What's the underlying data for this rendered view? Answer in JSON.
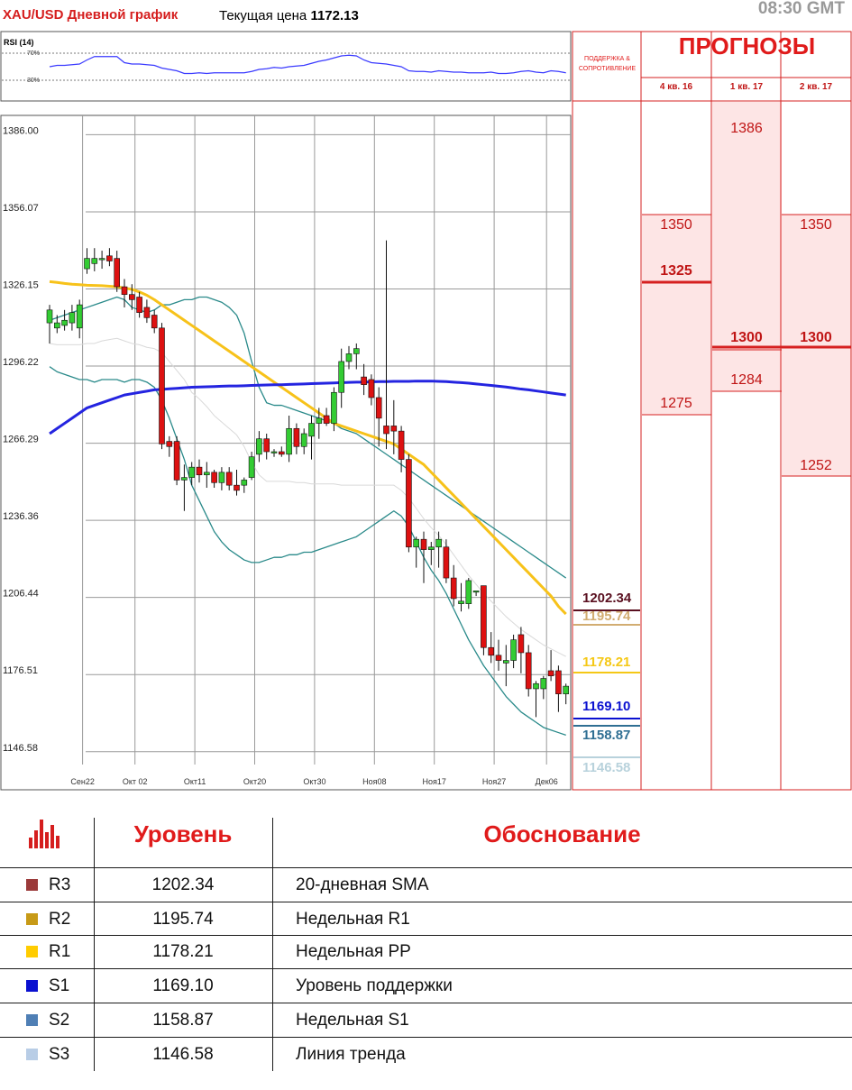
{
  "header": {
    "title": "XAU/USD Дневной график",
    "price_label": "Текущая цена",
    "price_value": "1172.13",
    "time": "08:30 GMT"
  },
  "chart_data": {
    "type": "candlestick",
    "indicator_label": "RSI (14)",
    "rsi_levels": [
      "70%",
      "30%"
    ],
    "y_ticks": [
      "1386.00",
      "1356.07",
      "1326.15",
      "1296.22",
      "1266.29",
      "1236.36",
      "1206.44",
      "1176.51",
      "1146.58"
    ],
    "ylim": [
      1141.6,
      1393.5
    ],
    "x_ticks": [
      "Сен22",
      "Окт 02",
      "Окт11",
      "Окт20",
      "Окт30",
      "Ноя08",
      "Ноя17",
      "Ноя27",
      "Дек06"
    ],
    "x_tick_index": [
      2,
      9,
      17,
      25,
      33,
      41,
      49,
      57,
      64
    ],
    "candles": [
      {
        "o": 1313,
        "h": 1320,
        "l": 1305,
        "c": 1318
      },
      {
        "o": 1311,
        "h": 1316,
        "l": 1309,
        "c": 1313
      },
      {
        "o": 1312,
        "h": 1318,
        "l": 1310,
        "c": 1314
      },
      {
        "o": 1313,
        "h": 1320,
        "l": 1310,
        "c": 1317
      },
      {
        "o": 1311,
        "h": 1322,
        "l": 1307,
        "c": 1320
      },
      {
        "o": 1334,
        "h": 1342,
        "l": 1332,
        "c": 1338
      },
      {
        "o": 1336,
        "h": 1342,
        "l": 1333,
        "c": 1338
      },
      {
        "o": 1338,
        "h": 1341,
        "l": 1334,
        "c": 1338
      },
      {
        "o": 1339,
        "h": 1342,
        "l": 1335,
        "c": 1337
      },
      {
        "o": 1338,
        "h": 1341,
        "l": 1325,
        "c": 1327
      },
      {
        "o": 1327,
        "h": 1330,
        "l": 1319,
        "c": 1324
      },
      {
        "o": 1324,
        "h": 1328,
        "l": 1318,
        "c": 1322
      },
      {
        "o": 1323,
        "h": 1325,
        "l": 1315,
        "c": 1317
      },
      {
        "o": 1319,
        "h": 1322,
        "l": 1313,
        "c": 1315
      },
      {
        "o": 1316,
        "h": 1318,
        "l": 1309,
        "c": 1311
      },
      {
        "o": 1311,
        "h": 1313,
        "l": 1264,
        "c": 1266
      },
      {
        "o": 1267,
        "h": 1269,
        "l": 1261,
        "c": 1265
      },
      {
        "o": 1267,
        "h": 1269,
        "l": 1250,
        "c": 1252
      },
      {
        "o": 1252,
        "h": 1258,
        "l": 1240,
        "c": 1253
      },
      {
        "o": 1253,
        "h": 1259,
        "l": 1250,
        "c": 1257
      },
      {
        "o": 1257,
        "h": 1260,
        "l": 1251,
        "c": 1254
      },
      {
        "o": 1254,
        "h": 1259,
        "l": 1249,
        "c": 1255
      },
      {
        "o": 1255,
        "h": 1256,
        "l": 1249,
        "c": 1251
      },
      {
        "o": 1251,
        "h": 1257,
        "l": 1248,
        "c": 1255
      },
      {
        "o": 1255,
        "h": 1257,
        "l": 1248,
        "c": 1250
      },
      {
        "o": 1250,
        "h": 1256,
        "l": 1246,
        "c": 1248
      },
      {
        "o": 1250,
        "h": 1253,
        "l": 1247,
        "c": 1252
      },
      {
        "o": 1253,
        "h": 1263,
        "l": 1252,
        "c": 1261
      },
      {
        "o": 1262,
        "h": 1271,
        "l": 1259,
        "c": 1268
      },
      {
        "o": 1268,
        "h": 1270,
        "l": 1260,
        "c": 1263
      },
      {
        "o": 1263,
        "h": 1264,
        "l": 1261,
        "c": 1263
      },
      {
        "o": 1263,
        "h": 1265,
        "l": 1261,
        "c": 1262
      },
      {
        "o": 1262,
        "h": 1277,
        "l": 1259,
        "c": 1272
      },
      {
        "o": 1272,
        "h": 1274,
        "l": 1262,
        "c": 1265
      },
      {
        "o": 1265,
        "h": 1272,
        "l": 1262,
        "c": 1270
      },
      {
        "o": 1269,
        "h": 1277,
        "l": 1260,
        "c": 1274
      },
      {
        "o": 1274,
        "h": 1280,
        "l": 1268,
        "c": 1276
      },
      {
        "o": 1277,
        "h": 1280,
        "l": 1273,
        "c": 1274
      },
      {
        "o": 1274,
        "h": 1288,
        "l": 1271,
        "c": 1286
      },
      {
        "o": 1286,
        "h": 1303,
        "l": 1280,
        "c": 1298
      },
      {
        "o": 1298,
        "h": 1304,
        "l": 1295,
        "c": 1301
      },
      {
        "o": 1301,
        "h": 1305,
        "l": 1295,
        "c": 1303
      },
      {
        "o": 1292,
        "h": 1297,
        "l": 1285,
        "c": 1289
      },
      {
        "o": 1291,
        "h": 1293,
        "l": 1281,
        "c": 1284
      },
      {
        "o": 1284,
        "h": 1288,
        "l": 1265,
        "c": 1276
      },
      {
        "o": 1273,
        "h": 1345,
        "l": 1264,
        "c": 1270
      },
      {
        "o": 1273,
        "h": 1283,
        "l": 1262,
        "c": 1271
      },
      {
        "o": 1271,
        "h": 1273,
        "l": 1255,
        "c": 1260
      },
      {
        "o": 1260,
        "h": 1262,
        "l": 1224,
        "c": 1226
      },
      {
        "o": 1226,
        "h": 1230,
        "l": 1218,
        "c": 1229
      },
      {
        "o": 1229,
        "h": 1232,
        "l": 1212,
        "c": 1225
      },
      {
        "o": 1225,
        "h": 1228,
        "l": 1219,
        "c": 1226
      },
      {
        "o": 1226,
        "h": 1232,
        "l": 1218,
        "c": 1229
      },
      {
        "o": 1226,
        "h": 1229,
        "l": 1212,
        "c": 1214
      },
      {
        "o": 1214,
        "h": 1219,
        "l": 1203,
        "c": 1206
      },
      {
        "o": 1204,
        "h": 1212,
        "l": 1201,
        "c": 1205
      },
      {
        "o": 1204,
        "h": 1214,
        "l": 1202,
        "c": 1213
      },
      {
        "o": 1209,
        "h": 1209,
        "l": 1207,
        "c": 1209
      },
      {
        "o": 1211,
        "h": 1211,
        "l": 1184,
        "c": 1187
      },
      {
        "o": 1187,
        "h": 1193,
        "l": 1181,
        "c": 1184
      },
      {
        "o": 1184,
        "h": 1190,
        "l": 1178,
        "c": 1182
      },
      {
        "o": 1181,
        "h": 1188,
        "l": 1172,
        "c": 1182
      },
      {
        "o": 1182,
        "h": 1192,
        "l": 1179,
        "c": 1190
      },
      {
        "o": 1192,
        "h": 1195,
        "l": 1177,
        "c": 1185
      },
      {
        "o": 1185,
        "h": 1188,
        "l": 1168,
        "c": 1171
      },
      {
        "o": 1171,
        "h": 1174,
        "l": 1160,
        "c": 1173
      },
      {
        "o": 1171,
        "h": 1176,
        "l": 1167,
        "c": 1175
      },
      {
        "o": 1178,
        "h": 1186,
        "l": 1174,
        "c": 1176
      },
      {
        "o": 1178,
        "h": 1180,
        "l": 1162,
        "c": 1169
      },
      {
        "o": 1169,
        "h": 1173,
        "l": 1165,
        "c": 1172
      }
    ],
    "sma_long": [
      1270,
      1272,
      1274,
      1276,
      1278,
      1280,
      1281,
      1282,
      1283,
      1284,
      1285,
      1285.5,
      1286,
      1286.5,
      1287,
      1287.2,
      1287.4,
      1287.6,
      1287.8,
      1288,
      1288.1,
      1288.2,
      1288.3,
      1288.4,
      1288.5,
      1288.5,
      1288.6,
      1288.7,
      1288.8,
      1288.9,
      1289,
      1289,
      1289.1,
      1289.2,
      1289.3,
      1289.4,
      1289.5,
      1289.6,
      1289.7,
      1289.8,
      1289.9,
      1290,
      1290,
      1290.1,
      1290.2,
      1290.2,
      1290.3,
      1290.3,
      1290.3,
      1290.4,
      1290.4,
      1290.4,
      1290.3,
      1290.2,
      1290,
      1289.8,
      1289.6,
      1289.3,
      1289,
      1288.7,
      1288.4,
      1288.1,
      1287.7,
      1287.3,
      1287,
      1286.6,
      1286.2,
      1285.8,
      1285.4,
      1285
    ],
    "sma_mid": [
      1329,
      1328.7,
      1328.3,
      1328,
      1327.8,
      1327.6,
      1327.5,
      1327.4,
      1327.2,
      1327,
      1326.5,
      1326,
      1325,
      1323.7,
      1322,
      1320,
      1318,
      1316,
      1314,
      1312,
      1310,
      1308,
      1306,
      1304,
      1302,
      1300,
      1298,
      1296,
      1294,
      1292,
      1290,
      1288,
      1286,
      1284,
      1282,
      1280,
      1278,
      1276,
      1274,
      1273,
      1272,
      1271,
      1270,
      1269,
      1268,
      1267,
      1266,
      1264,
      1262,
      1260,
      1258,
      1255,
      1252,
      1249,
      1246,
      1243,
      1240,
      1237,
      1234,
      1231,
      1228,
      1225,
      1222,
      1219,
      1216,
      1213,
      1210,
      1207,
      1203,
      1200
    ],
    "band_upper": [
      1314,
      1315,
      1316,
      1317,
      1318,
      1319,
      1320,
      1321,
      1322,
      1323,
      1322,
      1319,
      1318,
      1317,
      1318,
      1320,
      1320,
      1321,
      1322,
      1322,
      1323,
      1323,
      1322,
      1321,
      1319,
      1316,
      1309,
      1298,
      1288,
      1282,
      1281,
      1281,
      1280,
      1279,
      1278,
      1277,
      1276,
      1275,
      1274,
      1272,
      1271,
      1270,
      1268,
      1266,
      1264,
      1262,
      1260,
      1258,
      1256,
      1254,
      1252,
      1250,
      1248,
      1246,
      1244,
      1242,
      1240,
      1238,
      1236,
      1234,
      1232,
      1230,
      1228,
      1226,
      1224,
      1222,
      1220,
      1218,
      1216,
      1214
    ],
    "band_lower": [
      1296,
      1294,
      1293,
      1292,
      1291,
      1291,
      1290,
      1291,
      1291,
      1291,
      1290,
      1291,
      1291,
      1290,
      1288,
      1283,
      1276,
      1268,
      1260,
      1250,
      1244,
      1238,
      1232,
      1228,
      1225,
      1223,
      1221,
      1220,
      1220,
      1221,
      1222,
      1222,
      1223,
      1223,
      1224,
      1224,
      1225,
      1226,
      1227,
      1228,
      1229,
      1230,
      1232,
      1234,
      1236,
      1238,
      1240,
      1238,
      1234,
      1228,
      1222,
      1217,
      1213,
      1208,
      1202,
      1196,
      1190,
      1185,
      1180,
      1176,
      1172,
      1168,
      1165,
      1162,
      1160,
      1158,
      1156,
      1155,
      1154,
      1153
    ],
    "rsi": [
      50,
      52,
      52,
      53,
      54,
      60,
      65,
      65,
      65,
      65,
      56,
      54,
      54,
      53,
      52,
      48,
      46,
      44,
      40,
      40,
      41,
      40,
      41,
      41,
      41,
      41,
      41,
      43,
      46,
      47,
      49,
      48,
      50,
      51,
      52,
      55,
      58,
      60,
      63,
      66,
      67,
      66,
      60,
      56,
      55,
      54,
      52,
      50,
      44,
      43,
      43,
      42,
      44,
      43,
      42,
      42,
      41,
      41,
      41,
      42,
      40,
      40,
      41,
      43,
      44,
      42,
      41,
      44,
      43,
      41
    ],
    "levels": [
      {
        "name": "R3",
        "value": "1202.34",
        "color": "#5a1020"
      },
      {
        "name": "R2",
        "value": "1195.74",
        "color": "#d2ad72"
      },
      {
        "name": "R1",
        "value": "1178.21",
        "color": "#f5c816"
      },
      {
        "name": "S1",
        "value": "1169.10",
        "color": "#0a10d0"
      },
      {
        "name": "S2",
        "value": "1158.87",
        "color": "#2f6f93"
      },
      {
        "name": "S3",
        "value": "1146.58",
        "color": "#b8d2dc"
      }
    ]
  },
  "forecast": {
    "title": "ПРОГНОЗЫ",
    "sr_title": "ПОДДЕРЖКА & СОПРОТИВЛЕНИЕ",
    "columns": [
      {
        "label": "4 кв. 16",
        "top": "1350",
        "mid": "1325",
        "bottom": "1275"
      },
      {
        "label": "1 кв. 17",
        "top": "1386",
        "mid": "1300",
        "bottom": "1284"
      },
      {
        "label": "2 кв. 17",
        "top": "1350",
        "mid": "1300",
        "bottom": "1252"
      }
    ]
  },
  "table": {
    "headers": {
      "level": "Уровень",
      "reason": "Обоснование"
    },
    "rows": [
      {
        "name": "R3",
        "value": "1202.34",
        "reason": "20-дневная SMA",
        "color": "#9b3a3a"
      },
      {
        "name": "R2",
        "value": "1195.74",
        "reason": "Недельная R1",
        "color": "#c79a17"
      },
      {
        "name": "R1",
        "value": "1178.21",
        "reason": "Недельная PP",
        "color": "#ffcc00"
      },
      {
        "name": "S1",
        "value": "1169.10",
        "reason": "Уровень поддержки",
        "color": "#0a10d0"
      },
      {
        "name": "S2",
        "value": "1158.87",
        "reason": "Недельная S1",
        "color": "#4f7fb5"
      },
      {
        "name": "S3",
        "value": "1146.58",
        "reason": "Линия тренда",
        "color": "#b8cde6"
      }
    ]
  },
  "colors": {
    "bull": "#33cc33",
    "bear": "#dd1111",
    "accent": "#e01b1b",
    "sma_long": "#2424e0",
    "sma_mid": "#f7c21a",
    "band": "#2a8a8a",
    "rsi": "#3a3aff"
  }
}
